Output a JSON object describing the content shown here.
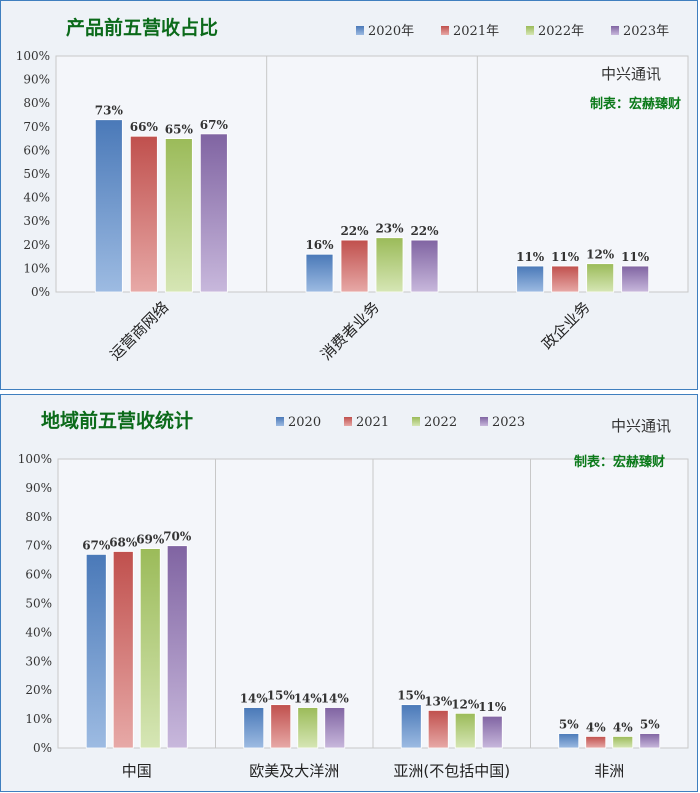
{
  "colors": {
    "s1": [
      "#4a79b8",
      "#9dbbe2"
    ],
    "s2": [
      "#c0504d",
      "#e7a9a7"
    ],
    "s3": [
      "#9bbb59",
      "#d6e6b5"
    ],
    "s4": [
      "#8064a2",
      "#c8b8dc"
    ],
    "title": "#0b6a1a",
    "border": "#3f7fbf"
  },
  "chart_data": [
    {
      "type": "bar",
      "title": "产品前五营收占比",
      "source": "中兴通讯",
      "maker": "制表：宏赫臻财",
      "categories": [
        "运营商网络",
        "消费者业务",
        "政企业务"
      ],
      "series": [
        {
          "name": "2020年",
          "values": [
            73,
            16,
            11
          ]
        },
        {
          "name": "2021年",
          "values": [
            66,
            22,
            11
          ]
        },
        {
          "name": "2022年",
          "values": [
            65,
            23,
            12
          ]
        },
        {
          "name": "2023年",
          "values": [
            67,
            22,
            11
          ]
        }
      ],
      "data_labels": [
        [
          "73%",
          "16%",
          "11%"
        ],
        [
          "66%",
          "22%",
          "11%"
        ],
        [
          "65%",
          "23%",
          "12%"
        ],
        [
          "67%",
          "22%",
          "11%"
        ]
      ],
      "yticks": [
        "100%",
        "90%",
        "80%",
        "70%",
        "60%",
        "50%",
        "40%",
        "30%",
        "20%",
        "10%",
        "0%"
      ],
      "ylim": [
        0,
        100
      ],
      "xlabel": "",
      "ylabel": "",
      "legend": "top-right",
      "grid": "vertical"
    },
    {
      "type": "bar",
      "title": "地域前五营收统计",
      "source": "中兴通讯",
      "maker": "制表：宏赫臻财",
      "categories": [
        "中国",
        "欧美及大洋洲",
        "亚洲(不包括中国)",
        "非洲"
      ],
      "series": [
        {
          "name": "2020",
          "values": [
            67,
            14,
            15,
            5
          ]
        },
        {
          "name": "2021",
          "values": [
            68,
            15,
            13,
            4
          ]
        },
        {
          "name": "2022",
          "values": [
            69,
            14,
            12,
            4
          ]
        },
        {
          "name": "2023",
          "values": [
            70,
            14,
            11,
            5
          ]
        }
      ],
      "data_labels": [
        [
          "67%",
          "14%",
          "15%",
          "5%"
        ],
        [
          "68%",
          "15%",
          "13%",
          "4%"
        ],
        [
          "69%",
          "14%",
          "12%",
          "4%"
        ],
        [
          "70%",
          "14%",
          "11%",
          "5%"
        ]
      ],
      "yticks": [
        "100%",
        "90%",
        "80%",
        "70%",
        "60%",
        "50%",
        "40%",
        "30%",
        "20%",
        "10%",
        "0%"
      ],
      "ylim": [
        0,
        100
      ],
      "xlabel": "",
      "ylabel": "",
      "legend": "top",
      "grid": "vertical"
    }
  ]
}
